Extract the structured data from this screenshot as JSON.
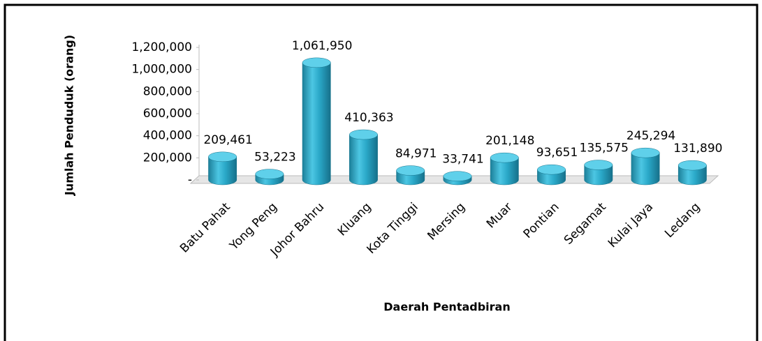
{
  "chart_data": {
    "type": "bar",
    "categories": [
      "Batu Pahat",
      "Yong Peng",
      "Johor Bahru",
      "Kluang",
      "Kota Tinggi",
      "Mersing",
      "Muar",
      "Pontian",
      "Segamat",
      "Kulai Jaya",
      "Ledang"
    ],
    "values": [
      209461,
      53223,
      1061950,
      410363,
      84971,
      33741,
      201148,
      93651,
      135575,
      245294,
      131890
    ],
    "value_labels": [
      "209,461",
      "53,223",
      "1,061,950",
      "410,363",
      "84,971",
      "33,741",
      "201,148",
      "93,651",
      "135,575",
      "245,294",
      "131,890"
    ],
    "color": "#2aa8c8",
    "ylim": [
      0,
      1200000
    ],
    "yticks": [
      {
        "value": 0,
        "label": "-"
      },
      {
        "value": 200000,
        "label": "200,000"
      },
      {
        "value": 400000,
        "label": "400,000"
      },
      {
        "value": 600000,
        "label": "600,000"
      },
      {
        "value": 800000,
        "label": "800,000"
      },
      {
        "value": 1000000,
        "label": "1,000,000"
      },
      {
        "value": 1200000,
        "label": "1,200,000"
      }
    ],
    "x_label": "Daerah Pentadbiran",
    "y_label": "Jumlah Penduduk (orang)"
  }
}
